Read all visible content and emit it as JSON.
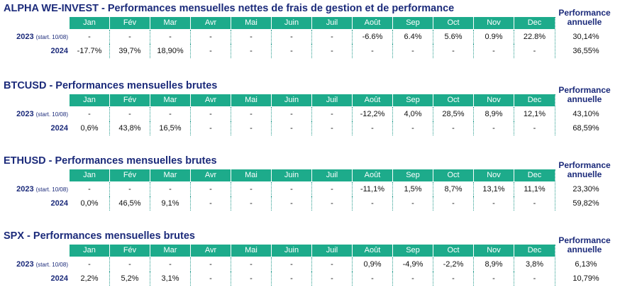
{
  "months": [
    "Jan",
    "Fév",
    "Mar",
    "Avr",
    "Mai",
    "Juin",
    "Juil",
    "Août",
    "Sep",
    "Oct",
    "Nov",
    "Dec"
  ],
  "annual_label_line1": "Performance",
  "annual_label_line2": "annuelle",
  "tables": [
    {
      "title": "ALPHA WE-INVEST - Performances mensuelles nettes de frais de gestion et de performance",
      "rows": [
        {
          "year": "2023",
          "note": "(start. 10/08)",
          "values": [
            "-",
            "-",
            "-",
            "-",
            "-",
            "-",
            "-",
            "-6.6%",
            "6.4%",
            "5.6%",
            "0.9%",
            "22.8%"
          ],
          "annual": "30,14%"
        },
        {
          "year": "2024",
          "note": "",
          "values": [
            "-17.7%",
            "39,7%",
            "18,90%",
            "-",
            "-",
            "-",
            "-",
            "-",
            "-",
            "-",
            "-",
            "-"
          ],
          "annual": "36,55%"
        }
      ]
    },
    {
      "title": "BTCUSD - Performances mensuelles brutes",
      "rows": [
        {
          "year": "2023",
          "note": "(start. 10/08)",
          "values": [
            "-",
            "-",
            "-",
            "-",
            "-",
            "-",
            "-",
            "-12,2%",
            "4,0%",
            "28,5%",
            "8,9%",
            "12,1%"
          ],
          "annual": "43,10%"
        },
        {
          "year": "2024",
          "note": "",
          "values": [
            "0,6%",
            "43,8%",
            "16,5%",
            "-",
            "-",
            "-",
            "-",
            "-",
            "-",
            "-",
            "-",
            "-"
          ],
          "annual": "68,59%"
        }
      ]
    },
    {
      "title": "ETHUSD - Performances mensuelles brutes",
      "rows": [
        {
          "year": "2023",
          "note": "(start. 10/08)",
          "values": [
            "-",
            "-",
            "-",
            "-",
            "-",
            "-",
            "-",
            "-11,1%",
            "1,5%",
            "8,7%",
            "13,1%",
            "11,1%"
          ],
          "annual": "23,30%"
        },
        {
          "year": "2024",
          "note": "",
          "values": [
            "0,0%",
            "46,5%",
            "9,1%",
            "-",
            "-",
            "-",
            "-",
            "-",
            "-",
            "-",
            "-",
            "-"
          ],
          "annual": "59,82%"
        }
      ]
    },
    {
      "title": "SPX - Performances mensuelles brutes",
      "rows": [
        {
          "year": "2023",
          "note": "(start. 10/08)",
          "values": [
            "-",
            "-",
            "-",
            "-",
            "-",
            "-",
            "-",
            "0,9%",
            "-4,9%",
            "-2,2%",
            "8,9%",
            "3,8%"
          ],
          "annual": "6,13%"
        },
        {
          "year": "2024",
          "note": "",
          "values": [
            "2,2%",
            "5,2%",
            "3,1%",
            "-",
            "-",
            "-",
            "-",
            "-",
            "-",
            "-",
            "-",
            "-"
          ],
          "annual": "10,79%"
        }
      ]
    }
  ],
  "colors": {
    "header_bg": "#1dab8b",
    "title": "#1b2a7a",
    "divider": "#2a9d8f"
  }
}
